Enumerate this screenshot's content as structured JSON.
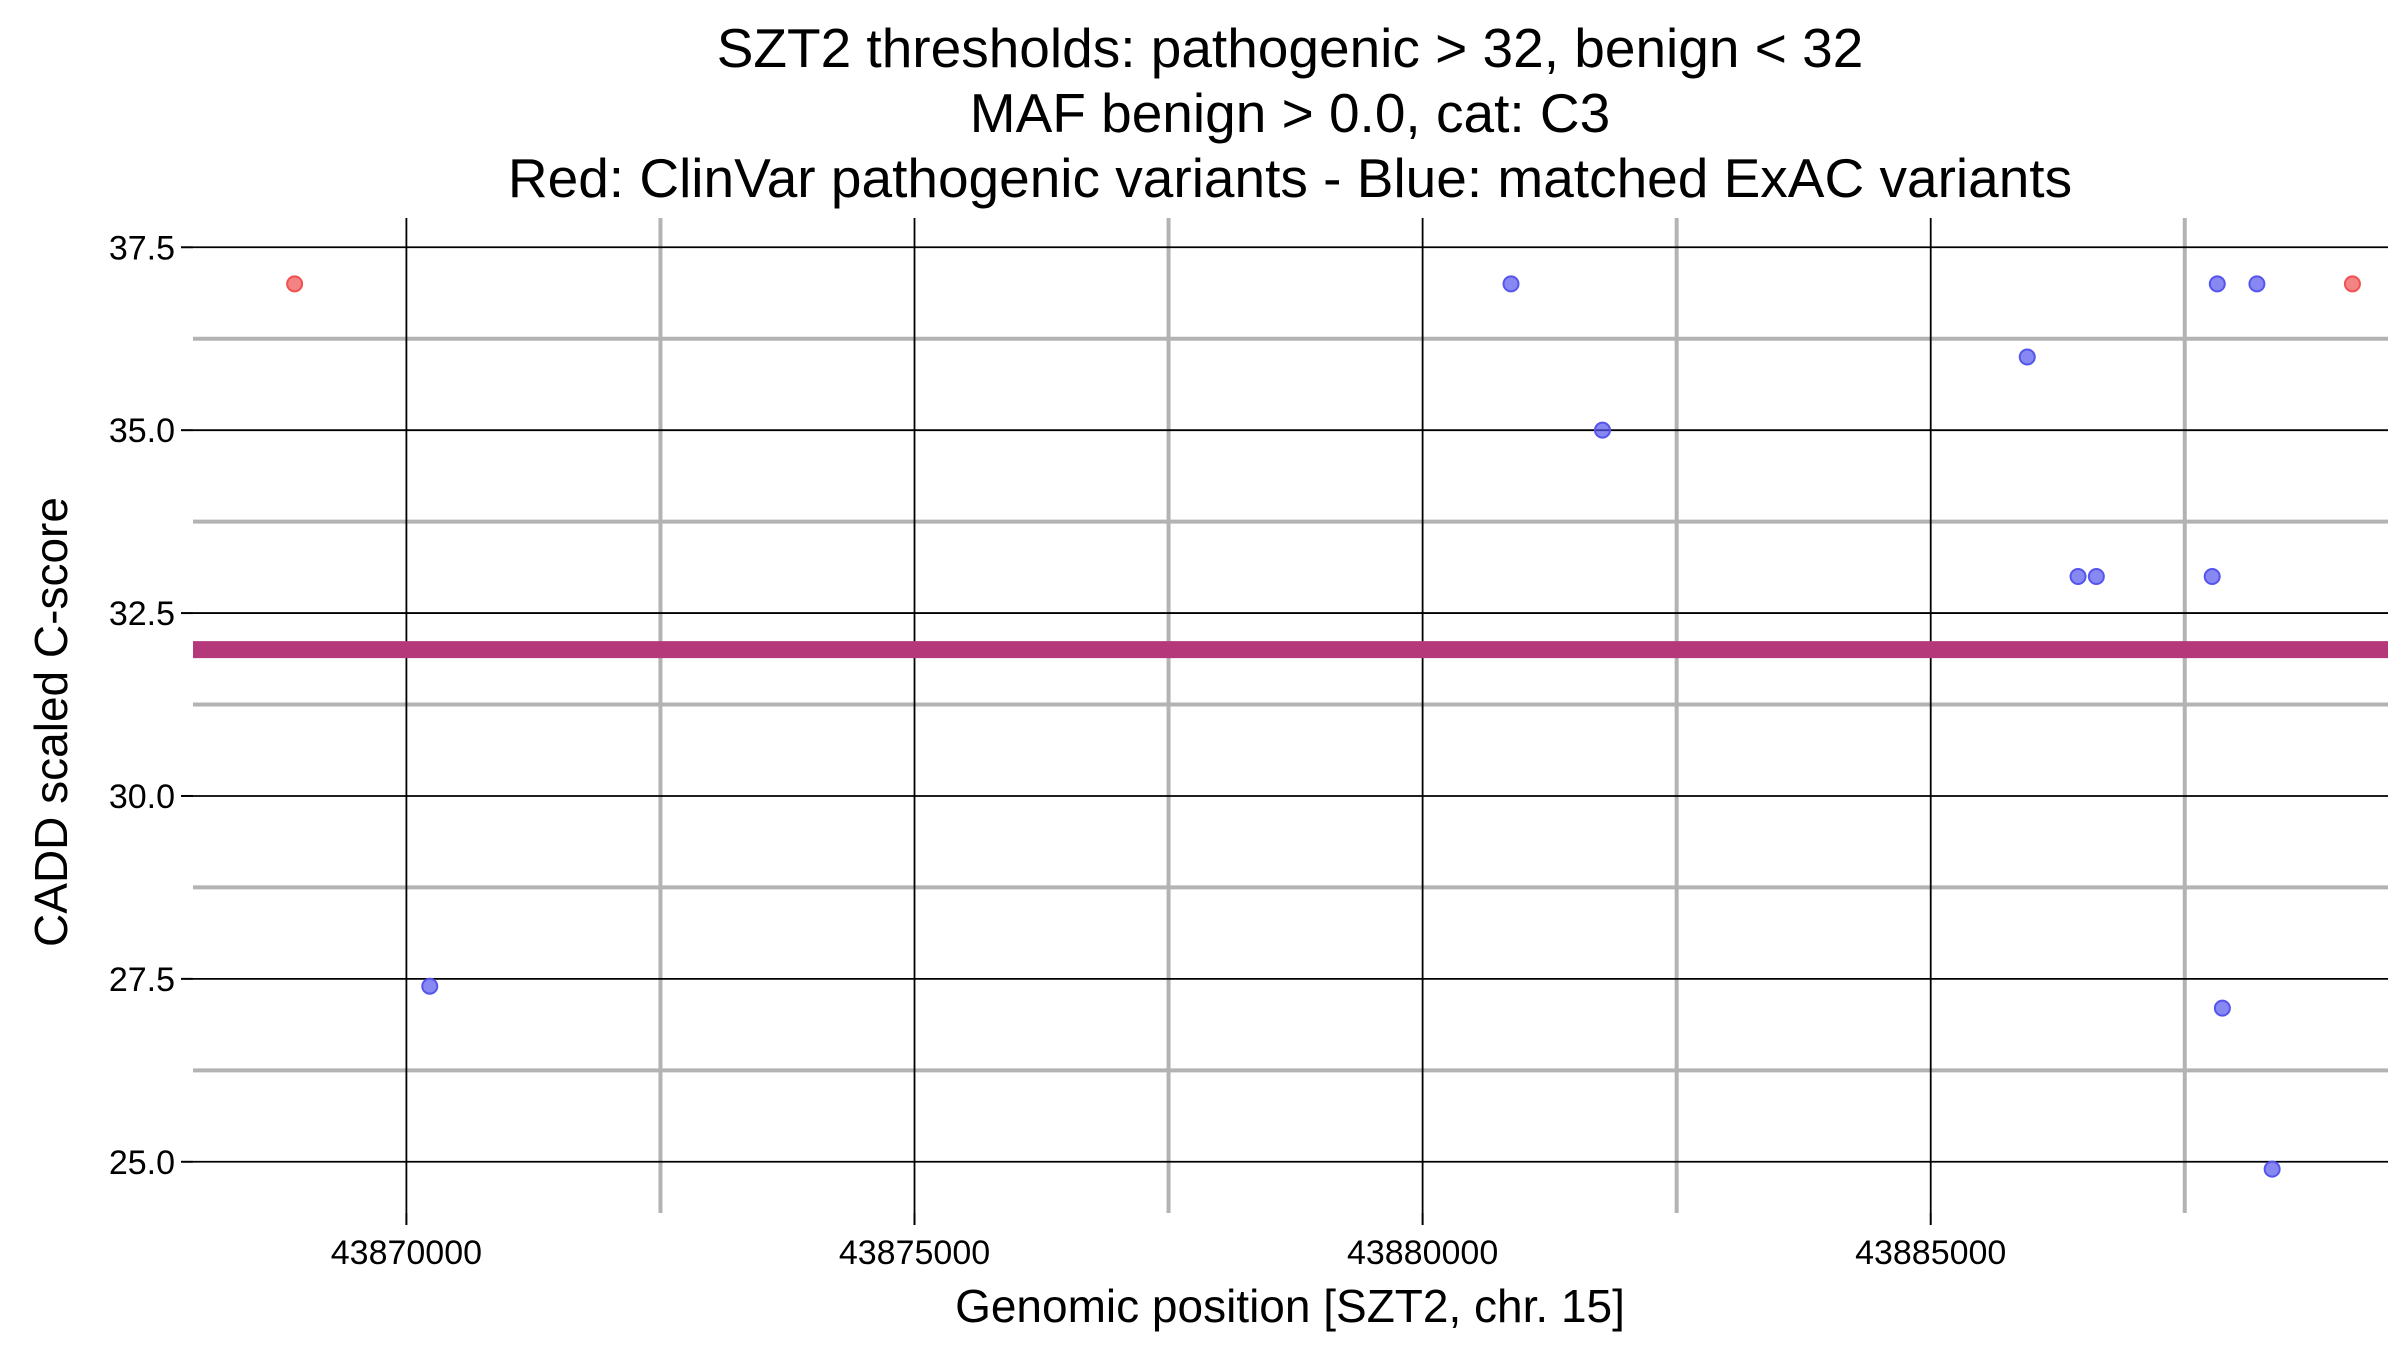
{
  "chart_data": {
    "type": "scatter",
    "title_lines": [
      "SZT2 thresholds: pathogenic > 32, benign < 32",
      "MAF benign > 0.0, cat: C3",
      "Red: ClinVar pathogenic variants - Blue: matched ExAC variants"
    ],
    "xlabel": "Genomic position [SZT2, chr. 15]",
    "ylabel": "CADD scaled C-score",
    "xlim": [
      43867900,
      43889500
    ],
    "ylim": [
      24.3,
      37.9
    ],
    "x_ticks": [
      43870000,
      43875000,
      43880000,
      43885000
    ],
    "x_tick_labels": [
      "43870000",
      "43875000",
      "43880000",
      "43885000"
    ],
    "x_minor_ticks": [
      43872500,
      43877500,
      43882500,
      43887500
    ],
    "y_ticks": [
      25.0,
      27.5,
      30.0,
      32.5,
      35.0,
      37.5
    ],
    "y_tick_labels": [
      "25.0",
      "27.5",
      "30.0",
      "32.5",
      "35.0",
      "37.5"
    ],
    "y_minor_ticks": [
      26.25,
      28.75,
      31.25,
      33.75,
      36.25
    ],
    "threshold": 32,
    "grid": true,
    "colors": {
      "pathogenic": "#f05050",
      "benign": "#5555ee",
      "threshold": "#b5387a",
      "major_grid": "#000000",
      "minor_grid": "#b3b3b3"
    },
    "series": [
      {
        "group": "pathogenic",
        "points": [
          {
            "x": 43868900,
            "y": 37.0
          },
          {
            "x": 43889150,
            "y": 37.0
          }
        ]
      },
      {
        "group": "benign",
        "points": [
          {
            "x": 43870230,
            "y": 27.4
          },
          {
            "x": 43880870,
            "y": 37.0
          },
          {
            "x": 43881770,
            "y": 35.0
          },
          {
            "x": 43885950,
            "y": 36.0
          },
          {
            "x": 43886450,
            "y": 33.0
          },
          {
            "x": 43886630,
            "y": 33.0
          },
          {
            "x": 43887770,
            "y": 33.0
          },
          {
            "x": 43887820,
            "y": 37.0
          },
          {
            "x": 43888210,
            "y": 37.0
          },
          {
            "x": 43887870,
            "y": 27.1
          },
          {
            "x": 43888360,
            "y": 24.9
          }
        ]
      }
    ]
  }
}
